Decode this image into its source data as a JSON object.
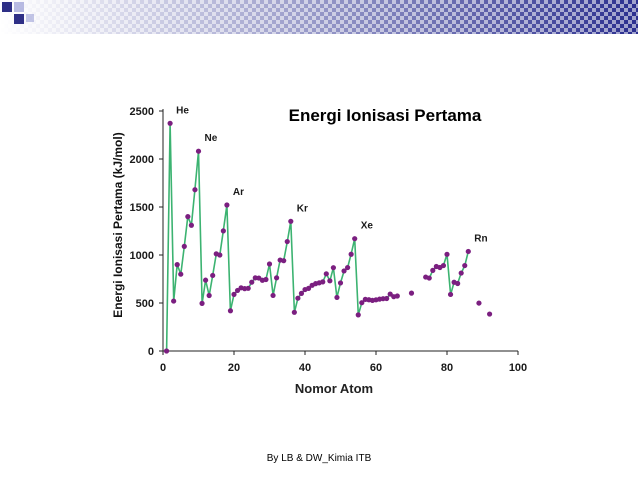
{
  "footer": {
    "credit": "By LB & DW_Kimia ITB"
  },
  "colors": {
    "line": "#3cb371",
    "point": "#7b1f80",
    "axis": "#222222",
    "label": "#1a1a1a",
    "plot_background": "#ffffff",
    "header_gradient_start": "#ffffff",
    "header_gradient_end": "#2b2f8f",
    "accent_square": "#2e2f86",
    "accent_square_light": "#8a8fd0"
  },
  "chart_data": {
    "type": "line",
    "title": "Energi Ionisasi Pertama",
    "xlabel": "Nomor Atom",
    "ylabel": "Energi Ionisasi Pertama (kJ/mol)",
    "xlim": [
      0,
      100
    ],
    "ylim": [
      0,
      2500
    ],
    "xticks": [
      0,
      20,
      40,
      60,
      80,
      100
    ],
    "yticks": [
      0,
      500,
      1000,
      1500,
      2000,
      2500
    ],
    "grid": false,
    "annotations": [
      {
        "text": "He",
        "x": 2,
        "y": 2372
      },
      {
        "text": "Ne",
        "x": 10,
        "y": 2081
      },
      {
        "text": "Ar",
        "x": 18,
        "y": 1521
      },
      {
        "text": "Kr",
        "x": 36,
        "y": 1351
      },
      {
        "text": "Xe",
        "x": 54,
        "y": 1170
      },
      {
        "text": "Rn",
        "x": 86,
        "y": 1037
      }
    ],
    "series": [
      {
        "points": [
          [
            1,
            0
          ],
          [
            2,
            2372
          ],
          [
            3,
            520
          ],
          [
            4,
            900
          ],
          [
            5,
            800
          ],
          [
            6,
            1090
          ],
          [
            7,
            1400
          ],
          [
            8,
            1310
          ],
          [
            9,
            1680
          ],
          [
            10,
            2081
          ],
          [
            11,
            496
          ],
          [
            12,
            738
          ],
          [
            13,
            578
          ],
          [
            14,
            787
          ],
          [
            15,
            1012
          ],
          [
            16,
            1000
          ],
          [
            17,
            1251
          ],
          [
            18,
            1521
          ],
          [
            19,
            419
          ],
          [
            20,
            590
          ],
          [
            21,
            631
          ],
          [
            22,
            658
          ],
          [
            23,
            650
          ],
          [
            24,
            653
          ],
          [
            25,
            717
          ],
          [
            26,
            762
          ],
          [
            27,
            760
          ],
          [
            28,
            737
          ],
          [
            29,
            745
          ],
          [
            30,
            906
          ],
          [
            31,
            579
          ],
          [
            32,
            762
          ],
          [
            33,
            947
          ],
          [
            34,
            941
          ],
          [
            35,
            1140
          ],
          [
            36,
            1351
          ],
          [
            37,
            403
          ],
          [
            38,
            550
          ],
          [
            39,
            600
          ],
          [
            40,
            640
          ],
          [
            41,
            652
          ],
          [
            42,
            684
          ],
          [
            43,
            702
          ],
          [
            44,
            710
          ],
          [
            45,
            720
          ],
          [
            46,
            804
          ],
          [
            47,
            731
          ],
          [
            48,
            868
          ],
          [
            49,
            558
          ],
          [
            50,
            709
          ],
          [
            51,
            834
          ],
          [
            52,
            869
          ],
          [
            53,
            1008
          ],
          [
            54,
            1170
          ],
          [
            55,
            376
          ],
          [
            56,
            503
          ],
          [
            57,
            538
          ],
          [
            58,
            534
          ],
          [
            59,
            527
          ],
          [
            60,
            533
          ],
          [
            61,
            540
          ],
          [
            62,
            545
          ],
          [
            63,
            547
          ],
          [
            64,
            593
          ],
          [
            65,
            566
          ],
          [
            66,
            573
          ],
          [
            70,
            603
          ],
          [
            74,
            770
          ],
          [
            75,
            760
          ],
          [
            76,
            840
          ],
          [
            77,
            880
          ],
          [
            78,
            870
          ],
          [
            79,
            890
          ],
          [
            80,
            1007
          ],
          [
            81,
            589
          ],
          [
            82,
            716
          ],
          [
            83,
            703
          ],
          [
            84,
            812
          ],
          [
            85,
            890
          ],
          [
            86,
            1037
          ],
          [
            89,
            499
          ],
          [
            92,
            385
          ]
        ],
        "connected_ranges": [
          [
            1,
            66
          ],
          [
            74,
            86
          ]
        ]
      }
    ]
  }
}
